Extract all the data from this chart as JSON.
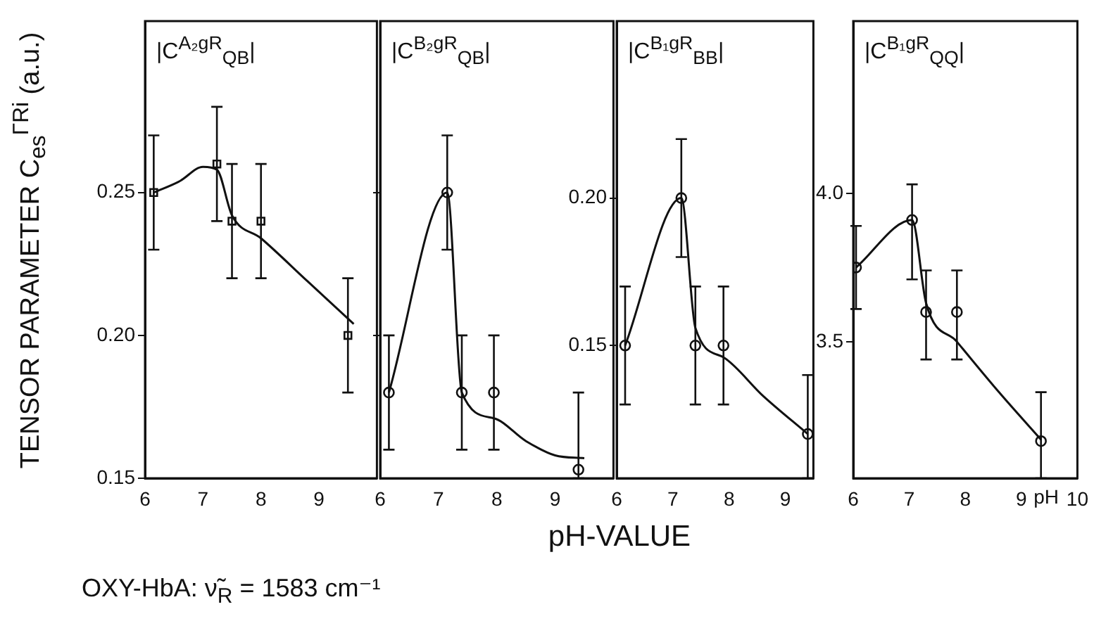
{
  "chart_data": [
    {
      "type": "scatter",
      "title": "|C$^{A₂gR}$$_{QB}$|",
      "ylabel": "TENSOR PARAMETER C$_{es}$$^{ΓRi}$ (a.u.)",
      "xlabel": "pH-VALUE",
      "annotations": [
        "OXY-HbA:  ν̃$_{R}$ = 1583 cm⁻¹"
      ],
      "xlim": [
        6,
        10
      ],
      "xticks": [
        6,
        7,
        8,
        9
      ],
      "ylim": [
        0.15,
        0.31
      ],
      "yticks": [
        0.15,
        {
          "value": 0.2,
          "label": "0.20"
        },
        0.25
      ],
      "series": [
        {
          "marker": "square",
          "color": "#111111",
          "x": [
            6.15,
            7.24,
            7.5,
            8.0,
            9.5
          ],
          "values": [
            0.25,
            0.26,
            0.24,
            0.24,
            0.2
          ],
          "errors": [
            [
              0.23,
              0.27
            ],
            [
              0.24,
              0.28
            ],
            [
              0.22,
              0.26
            ],
            [
              0.22,
              0.26
            ],
            [
              0.18,
              0.22
            ]
          ]
        },
        {
          "type": "line",
          "color": "#111111",
          "x": [
            6.15,
            6.6,
            7.0,
            7.24,
            7.5,
            8.0,
            8.8,
            9.6
          ],
          "values": [
            0.25,
            0.254,
            0.259,
            0.258,
            0.242,
            0.234,
            0.219,
            0.204
          ]
        }
      ]
    },
    {
      "type": "scatter",
      "title": "|C$^{B₂gR}$$_{QB}$|",
      "xlim": [
        6,
        10
      ],
      "xticks": [
        6,
        7,
        8,
        9
      ],
      "ylim": [
        0.15,
        0.31
      ],
      "yticks": [
        {
          "value": 0.2,
          "label": null
        },
        {
          "value": 0.25,
          "label": null
        }
      ],
      "tick_labels": "x",
      "series": [
        {
          "marker": "circle",
          "color": "#111111",
          "x": [
            6.15,
            7.15,
            7.4,
            7.95,
            9.4
          ],
          "values": [
            0.18,
            0.25,
            0.18,
            0.18,
            0.153
          ],
          "errors": [
            [
              0.16,
              0.2
            ],
            [
              0.23,
              0.27
            ],
            [
              0.16,
              0.2
            ],
            [
              0.16,
              0.2
            ],
            [
              0.15,
              0.18
            ]
          ]
        },
        {
          "type": "line",
          "color": "#111111",
          "x": [
            6.15,
            7.15,
            7.4,
            7.95,
            8.5,
            9.0,
            9.5
          ],
          "values": [
            0.18,
            0.25,
            0.18,
            0.171,
            0.163,
            0.158,
            0.157
          ]
        }
      ]
    },
    {
      "type": "scatter",
      "title": "|C$^{B₁gR}$$_{BB}$|",
      "xlim": [
        6,
        9.5
      ],
      "xticks": [
        6,
        7,
        8,
        9
      ],
      "ylim": [
        0.105,
        0.26
      ],
      "yticks": [
        0.15,
        {
          "value": 0.2,
          "label": "0.20"
        }
      ],
      "series": [
        {
          "marker": "circle",
          "color": "#111111",
          "x": [
            6.15,
            7.15,
            7.4,
            7.9,
            9.4
          ],
          "values": [
            0.15,
            0.2,
            0.15,
            0.15,
            0.12
          ],
          "errors": [
            [
              0.13,
              0.17
            ],
            [
              0.18,
              0.22
            ],
            [
              0.13,
              0.17
            ],
            [
              0.13,
              0.17
            ],
            [
              0.105,
              0.14
            ]
          ]
        },
        {
          "type": "line",
          "color": "#111111",
          "x": [
            6.15,
            7.15,
            7.4,
            7.9,
            8.6,
            9.4
          ],
          "values": [
            0.15,
            0.2,
            0.156,
            0.146,
            0.133,
            0.12
          ]
        }
      ]
    },
    {
      "type": "scatter",
      "title": "|C$^{B₁gR}$$_{QQ}$|",
      "annotations": [
        "pH"
      ],
      "xlim": [
        6,
        10
      ],
      "xticks": [
        6,
        7,
        8,
        9,
        10
      ],
      "ylim": [
        3.04,
        4.58
      ],
      "yticks": [
        3.5,
        {
          "value": 4,
          "label": "4.0"
        }
      ],
      "series": [
        {
          "marker": "circle",
          "color": "#111111",
          "x": [
            6.05,
            7.05,
            7.3,
            7.85,
            9.35
          ],
          "values": [
            3.75,
            3.91,
            3.6,
            3.6,
            3.165
          ],
          "errors": [
            [
              3.61,
              3.89
            ],
            [
              3.71,
              4.03
            ],
            [
              3.44,
              3.74
            ],
            [
              3.44,
              3.74
            ],
            [
              3.04,
              3.33
            ]
          ]
        },
        {
          "type": "line",
          "color": "#111111",
          "x": [
            6.05,
            7.05,
            7.3,
            7.85,
            8.6,
            9.35
          ],
          "values": [
            3.75,
            3.91,
            3.63,
            3.5,
            3.33,
            3.17
          ]
        }
      ]
    }
  ]
}
